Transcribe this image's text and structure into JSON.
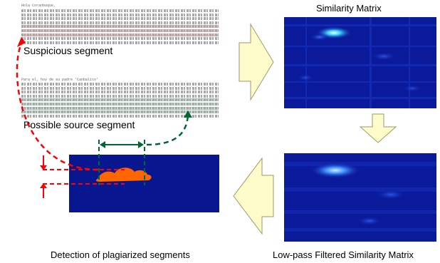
{
  "labels": {
    "similarity_matrix": "Similarity Matrix",
    "suspicious_segment": "Suspicious segment",
    "possible_source_segment": "Possible source segment",
    "detection": "Detection of plagiarized segments",
    "lowpass": "Low-pass Filtered Similarity Matrix"
  },
  "doc_snippets": {
    "suspicious_heading": "Hola Coranbuque,",
    "source_heading": "Para el, hoy de su padre 'Canbalito'"
  },
  "colors": {
    "arrow_fill": "#fffccc",
    "arrow_stroke": "#9a9a66",
    "matrix_bg": "#0a1a9a",
    "red_dashed": "#ff0000",
    "green_dashed": "#006633",
    "blob": "#ff6600",
    "highlight_red": "#f4a6a6",
    "highlight_green": "#a7d7bc"
  }
}
